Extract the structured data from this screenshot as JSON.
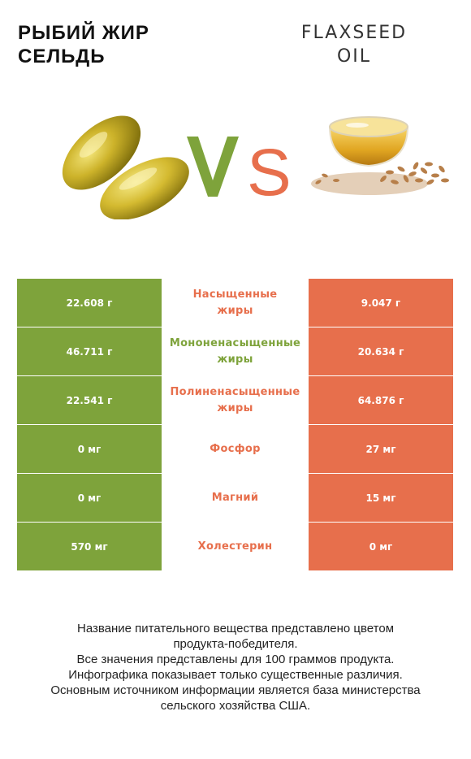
{
  "header": {
    "left_title_line1": "РЫБИЙ ЖИР",
    "left_title_line2": "СЕЛЬДЬ",
    "right_title_line1": "FLAXSEED",
    "right_title_line2": "OIL",
    "vs_text": "VS"
  },
  "colors": {
    "left": "#7ea33b",
    "right": "#e76f4c"
  },
  "rows": [
    {
      "label": "Насыщенные жиры",
      "left": "22.608 г",
      "right": "9.047 г",
      "winner": "right"
    },
    {
      "label": "Мононенасыщенные жиры",
      "left": "46.711 г",
      "right": "20.634 г",
      "winner": "left"
    },
    {
      "label": "Полиненасыщенные жиры",
      "left": "22.541 г",
      "right": "64.876 г",
      "winner": "right"
    },
    {
      "label": "Фосфор",
      "left": "0 мг",
      "right": "27 мг",
      "winner": "right"
    },
    {
      "label": "Магний",
      "left": "0 мг",
      "right": "15 мг",
      "winner": "right"
    },
    {
      "label": "Холестерин",
      "left": "570 мг",
      "right": "0 мг",
      "winner": "right"
    }
  ],
  "footer": {
    "line1": "Название питательного вещества представлено цветом",
    "line2": "продукта-победителя.",
    "line3": "Все значения представлены для 100 граммов продукта.",
    "line4": "Инфографика показывает только существенные различия.",
    "line5": "Основным источником информации является база министерства",
    "line6": "сельского хозяйства США."
  }
}
